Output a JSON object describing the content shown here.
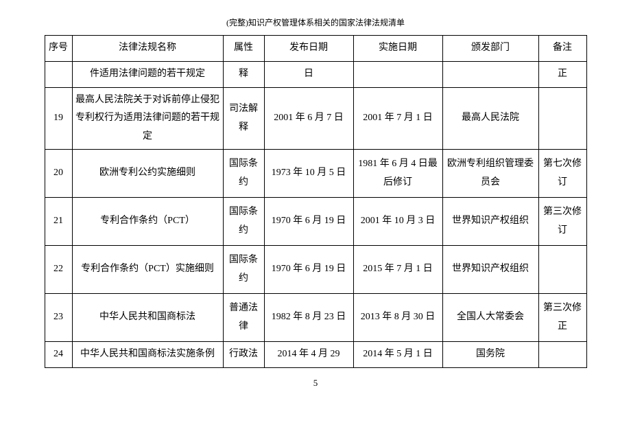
{
  "title": "(完整)知识产权管理体系相关的国家法律法规清单",
  "columns": [
    "序号",
    "法律法规名称",
    "属性",
    "发布日期",
    "实施日期",
    "颁发部门",
    "备注"
  ],
  "rows": [
    [
      "",
      "件适用法律问题的若干规定",
      "释",
      "日",
      "",
      "",
      "正"
    ],
    [
      "19",
      "最高人民法院关于对诉前停止侵犯专利权行为适用法律问题的若干规定",
      "司法解释",
      "2001 年 6 月 7 日",
      "2001 年 7 月 1 日",
      "最高人民法院",
      ""
    ],
    [
      "20",
      "欧洲专利公约实施细则",
      "国际条约",
      "1973 年 10 月 5 日",
      "1981 年 6 月 4 日最后修订",
      "欧洲专利组织管理委员会",
      "第七次修订"
    ],
    [
      "21",
      "专利合作条约（PCT）",
      "国际条约",
      "1970 年 6 月 19 日",
      "2001 年 10 月 3 日",
      "世界知识产权组织",
      "第三次修订"
    ],
    [
      "22",
      "专利合作条约（PCT）实施细则",
      "国际条约",
      "1970 年 6 月 19 日",
      "2015 年 7 月 1 日",
      "世界知识产权组织",
      ""
    ],
    [
      "23",
      "中华人民共和国商标法",
      "普通法律",
      "1982 年 8 月 23 日",
      "2013 年 8 月 30 日",
      "全国人大常委会",
      "第三次修正"
    ],
    [
      "24",
      "中华人民共和国商标法实施条例",
      "行政法",
      "2014 年 4 月 29",
      "2014 年 5 月 1 日",
      "国务院",
      ""
    ]
  ],
  "pageNumber": "5",
  "row_heights": [
    "38px",
    "90px",
    "70px",
    "70px",
    "70px",
    "70px",
    "38px"
  ]
}
